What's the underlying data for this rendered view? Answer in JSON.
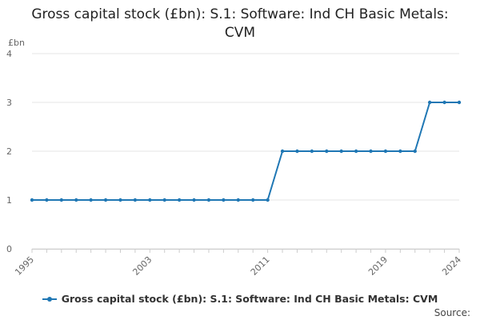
{
  "chart_data": {
    "type": "line",
    "title": "Gross capital stock (£bn): S.1: Software: Ind CH Basic Metals: CVM",
    "ylabel": "£bn",
    "xlabel": "",
    "ylim": [
      0,
      4
    ],
    "yticks": [
      0,
      1,
      2,
      3,
      4
    ],
    "xlim": [
      1995,
      2024
    ],
    "xticks": [
      1995,
      2003,
      2011,
      2019,
      2024
    ],
    "grid": true,
    "legend_position": "bottom",
    "series": [
      {
        "name": "Gross capital stock (£bn): S.1: Software: Ind CH Basic Metals: CVM",
        "color": "#1f77b4",
        "x": [
          1995,
          1996,
          1997,
          1998,
          1999,
          2000,
          2001,
          2002,
          2003,
          2004,
          2005,
          2006,
          2007,
          2008,
          2009,
          2010,
          2011,
          2012,
          2013,
          2014,
          2015,
          2016,
          2017,
          2018,
          2019,
          2020,
          2021,
          2022,
          2023,
          2024
        ],
        "values": [
          1,
          1,
          1,
          1,
          1,
          1,
          1,
          1,
          1,
          1,
          1,
          1,
          1,
          1,
          1,
          1,
          1,
          2,
          2,
          2,
          2,
          2,
          2,
          2,
          2,
          2,
          2,
          3,
          3,
          3
        ]
      }
    ]
  },
  "source_label": "Source:"
}
